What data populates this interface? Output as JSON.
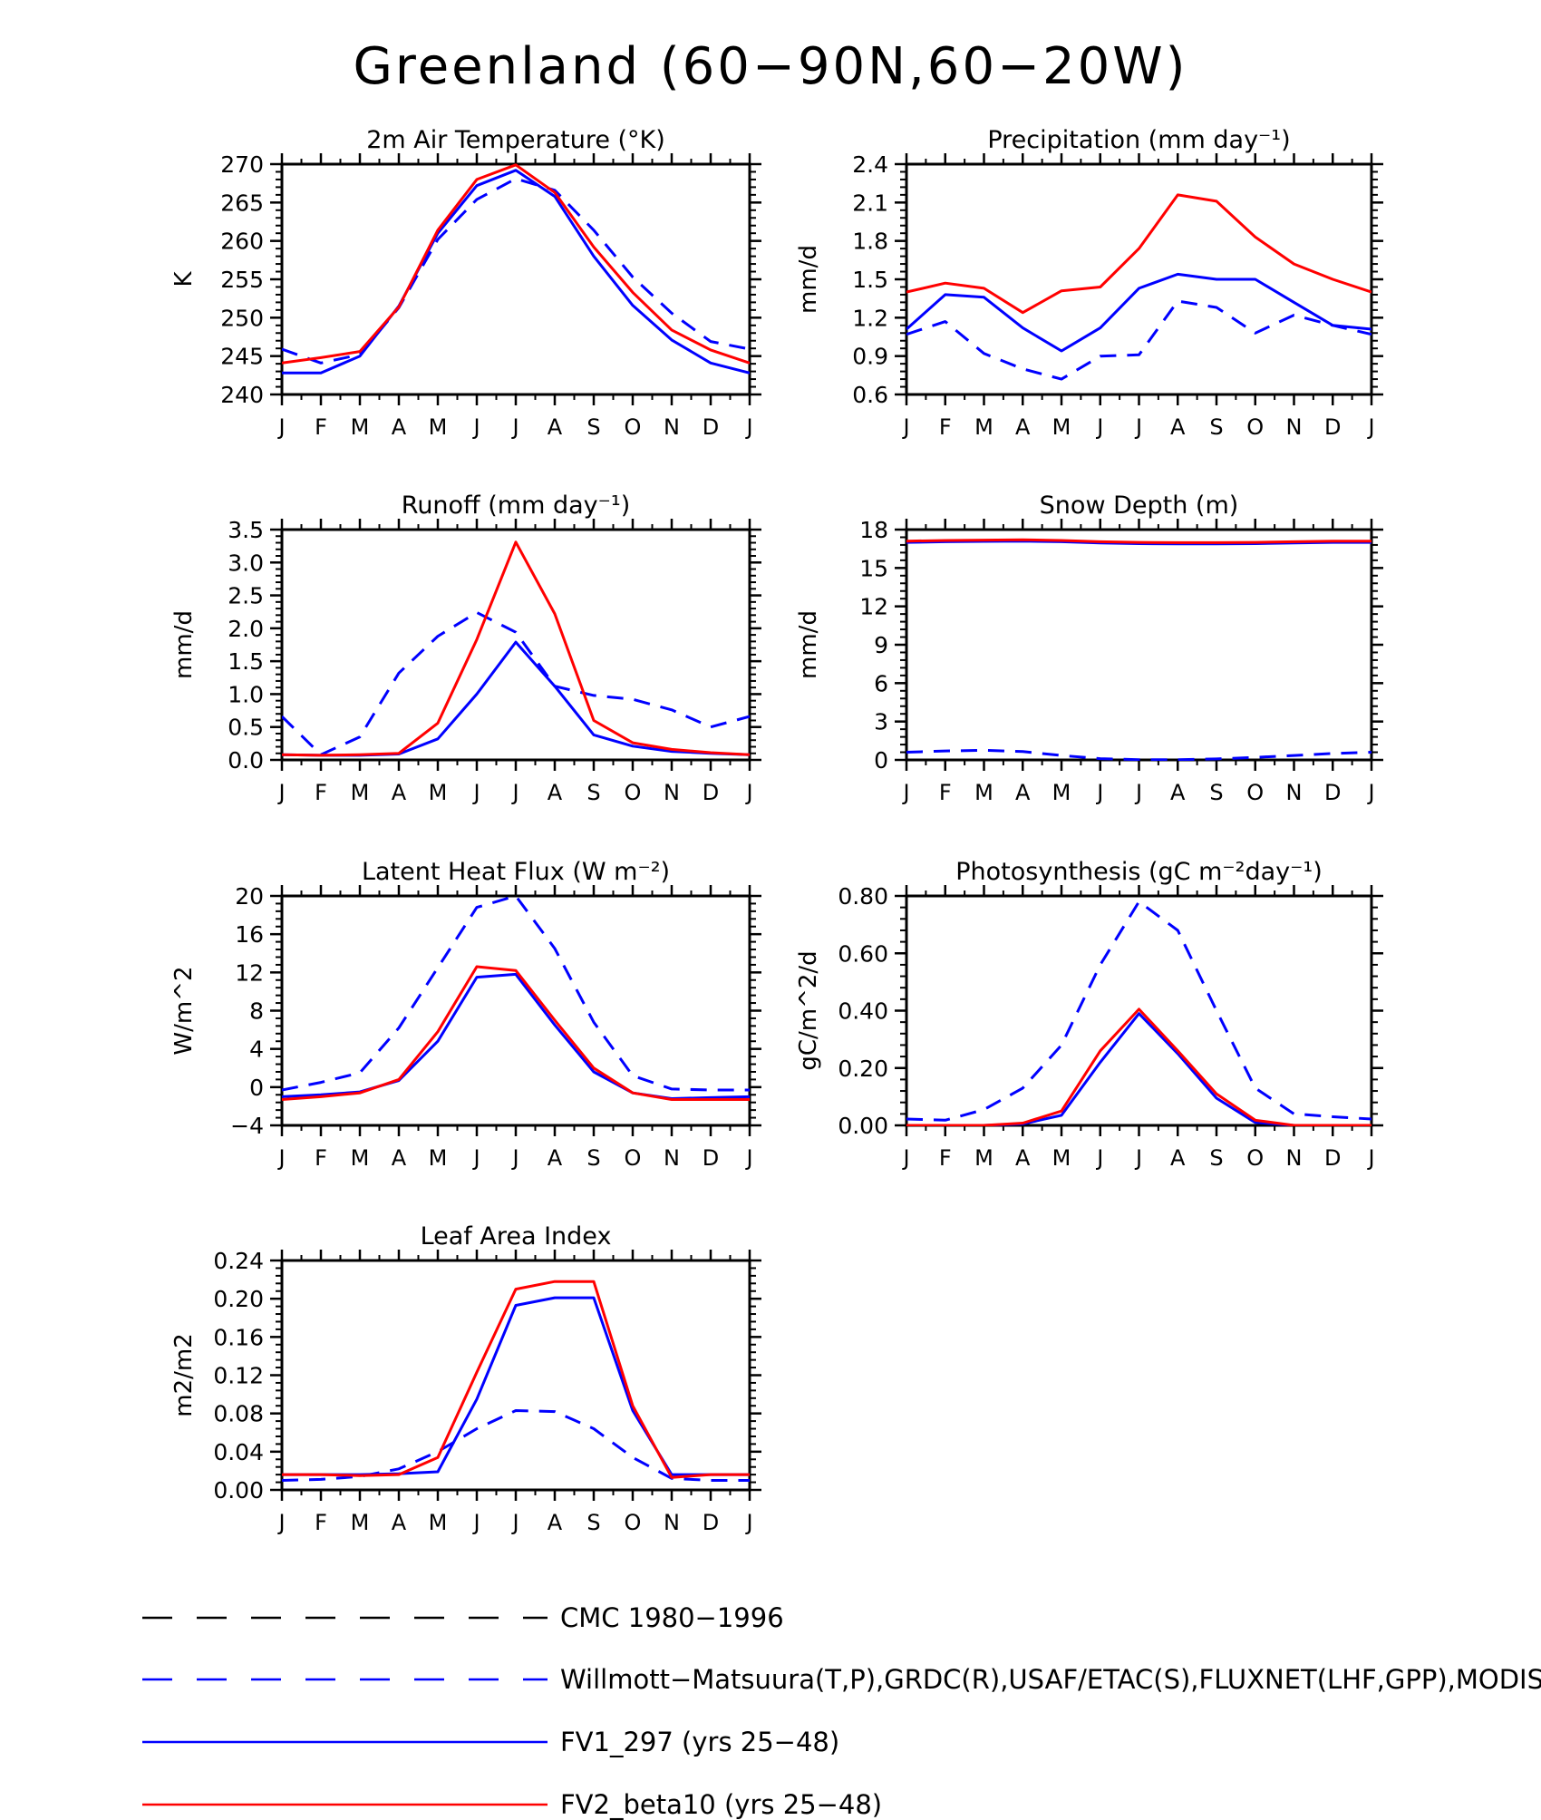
{
  "title": "Greenland (60−90N,60−20W)",
  "months": [
    "J",
    "F",
    "M",
    "A",
    "M",
    "J",
    "J",
    "A",
    "S",
    "O",
    "N",
    "D",
    "J"
  ],
  "colors": {
    "obs": "#0000ff",
    "fv1": "#0000ff",
    "fv2": "#ff0000",
    "cmc": "#000000"
  },
  "legend": [
    {
      "label": "CMC 1980−1996",
      "color": "#000000",
      "dash": "dashed"
    },
    {
      "label": "Willmott−Matsuura(T,P),GRDC(R),USAF/ETAC(S),FLUXNET(LHF,GPP),MODIS(L",
      "color": "#0000ff",
      "dash": "dashed"
    },
    {
      "label": "FV1_297 (yrs 25−48)",
      "color": "#0000ff",
      "dash": "solid"
    },
    {
      "label": "FV2_beta10 (yrs 25−48)",
      "color": "#ff0000",
      "dash": "solid"
    }
  ],
  "chart_data": [
    {
      "type": "line",
      "id": "temp",
      "title": "2m Air Temperature (°K)",
      "ylabel": "K",
      "ylim": [
        240,
        270
      ],
      "yticks": [
        240,
        245,
        250,
        255,
        260,
        265,
        270
      ],
      "ytick_labels": [
        "240",
        "245",
        "250",
        "255",
        "260",
        "265",
        "270"
      ],
      "series": [
        {
          "name": "Willmott-Matsuura (obs)",
          "style": "dashed",
          "color": "#0000ff",
          "values": [
            245.9,
            244.1,
            245.2,
            251.3,
            260.2,
            265.4,
            268.1,
            266.6,
            261.4,
            255.3,
            250.6,
            246.9,
            245.9
          ]
        },
        {
          "name": "FV1_297",
          "style": "solid",
          "color": "#0000ff",
          "values": [
            242.8,
            242.8,
            245.0,
            251.5,
            261.0,
            267.2,
            269.2,
            265.8,
            258.0,
            251.6,
            247.1,
            244.1,
            242.8
          ]
        },
        {
          "name": "FV2_beta10",
          "style": "solid",
          "color": "#ff0000",
          "values": [
            244.1,
            244.8,
            245.6,
            251.4,
            261.4,
            268.0,
            269.9,
            266.3,
            259.2,
            253.3,
            248.4,
            245.8,
            244.1
          ]
        }
      ]
    },
    {
      "type": "line",
      "id": "precip",
      "title": "Precipitation (mm day⁻¹)",
      "ylabel": "mm/d",
      "ylim": [
        0.6,
        2.4
      ],
      "yticks": [
        0.6,
        0.9,
        1.2,
        1.5,
        1.8,
        2.1,
        2.4
      ],
      "ytick_labels": [
        "0.6",
        "0.9",
        "1.2",
        "1.5",
        "1.8",
        "2.1",
        "2.4"
      ],
      "series": [
        {
          "name": "Willmott-Matsuura (obs)",
          "style": "dashed",
          "color": "#0000ff",
          "values": [
            1.07,
            1.17,
            0.92,
            0.8,
            0.72,
            0.9,
            0.91,
            1.33,
            1.28,
            1.08,
            1.22,
            1.14,
            1.07
          ]
        },
        {
          "name": "FV1_297",
          "style": "solid",
          "color": "#0000ff",
          "values": [
            1.11,
            1.38,
            1.36,
            1.12,
            0.94,
            1.12,
            1.43,
            1.54,
            1.5,
            1.5,
            1.32,
            1.14,
            1.11
          ]
        },
        {
          "name": "FV2_beta10",
          "style": "solid",
          "color": "#ff0000",
          "values": [
            1.4,
            1.47,
            1.43,
            1.24,
            1.41,
            1.44,
            1.74,
            2.16,
            2.11,
            1.83,
            1.62,
            1.5,
            1.4
          ]
        }
      ]
    },
    {
      "type": "line",
      "id": "runoff",
      "title": "Runoff (mm day⁻¹)",
      "ylabel": "mm/d",
      "ylim": [
        0,
        3.5
      ],
      "yticks": [
        0,
        0.5,
        1.0,
        1.5,
        2.0,
        2.5,
        3.0,
        3.5
      ],
      "ytick_labels": [
        "0.0",
        "0.5",
        "1.0",
        "1.5",
        "2.0",
        "2.5",
        "3.0",
        "3.5"
      ],
      "series": [
        {
          "name": "GRDC (obs)",
          "style": "dashed",
          "color": "#0000ff",
          "values": [
            0.66,
            0.08,
            0.35,
            1.32,
            1.88,
            2.24,
            1.94,
            1.12,
            0.98,
            0.92,
            0.76,
            0.5,
            0.66
          ]
        },
        {
          "name": "FV1_297",
          "style": "solid",
          "color": "#0000ff",
          "values": [
            0.08,
            0.07,
            0.07,
            0.09,
            0.32,
            1.0,
            1.79,
            1.12,
            0.38,
            0.21,
            0.13,
            0.1,
            0.08
          ]
        },
        {
          "name": "FV2_beta10",
          "style": "solid",
          "color": "#ff0000",
          "values": [
            0.08,
            0.07,
            0.08,
            0.1,
            0.56,
            1.83,
            3.31,
            2.22,
            0.6,
            0.26,
            0.16,
            0.11,
            0.08
          ]
        }
      ]
    },
    {
      "type": "line",
      "id": "snow",
      "title": "Snow Depth (m)",
      "ylabel": "mm/d",
      "ylim": [
        0,
        18
      ],
      "yticks": [
        0,
        3,
        6,
        9,
        12,
        15,
        18
      ],
      "ytick_labels": [
        "0",
        "3",
        "6",
        "9",
        "12",
        "15",
        "18"
      ],
      "series": [
        {
          "name": "USAF/ETAC (obs)",
          "style": "dashed",
          "color": "#0000ff",
          "values": [
            0.6,
            0.7,
            0.75,
            0.65,
            0.35,
            0.1,
            0.02,
            0.02,
            0.08,
            0.2,
            0.35,
            0.5,
            0.6
          ]
        },
        {
          "name": "FV1_297",
          "style": "solid",
          "color": "#0000ff",
          "values": [
            17.0,
            17.05,
            17.08,
            17.1,
            17.05,
            16.95,
            16.9,
            16.88,
            16.88,
            16.9,
            16.95,
            17.0,
            17.0
          ]
        },
        {
          "name": "FV2_beta10",
          "style": "solid",
          "color": "#ff0000",
          "values": [
            17.1,
            17.15,
            17.18,
            17.2,
            17.15,
            17.05,
            17.0,
            16.98,
            16.98,
            17.0,
            17.05,
            17.1,
            17.1
          ]
        }
      ]
    },
    {
      "type": "line",
      "id": "lhf",
      "title": "Latent Heat Flux (W m⁻²)",
      "ylabel": "W/m^2",
      "ylim": [
        -4,
        20
      ],
      "yticks": [
        -4,
        0,
        4,
        8,
        12,
        16,
        20
      ],
      "ytick_labels": [
        "−4",
        "0",
        "4",
        "8",
        "12",
        "16",
        "20"
      ],
      "series": [
        {
          "name": "FLUXNET (obs)",
          "style": "dashed",
          "color": "#0000ff",
          "values": [
            -0.3,
            0.5,
            1.5,
            6.2,
            12.5,
            18.8,
            20.0,
            14.5,
            6.8,
            1.2,
            -0.2,
            -0.3,
            -0.3
          ]
        },
        {
          "name": "FV1_297",
          "style": "solid",
          "color": "#0000ff",
          "values": [
            -1.0,
            -0.8,
            -0.5,
            0.7,
            4.8,
            11.5,
            11.8,
            6.5,
            1.6,
            -0.6,
            -1.2,
            -1.1,
            -1.0
          ]
        },
        {
          "name": "FV2_beta10",
          "style": "solid",
          "color": "#ff0000",
          "values": [
            -1.3,
            -1.0,
            -0.6,
            0.8,
            5.8,
            12.6,
            12.2,
            7.0,
            2.0,
            -0.6,
            -1.3,
            -1.3,
            -1.3
          ]
        }
      ]
    },
    {
      "type": "line",
      "id": "gpp",
      "title": "Photosynthesis (gC m⁻²day⁻¹)",
      "ylabel": "gC/m^2/d",
      "ylim": [
        0,
        0.8
      ],
      "yticks": [
        0,
        0.2,
        0.4,
        0.6,
        0.8
      ],
      "ytick_labels": [
        "0.00",
        "0.20",
        "0.40",
        "0.60",
        "0.80"
      ],
      "series": [
        {
          "name": "FLUXNET (obs)",
          "style": "dashed",
          "color": "#0000ff",
          "values": [
            0.022,
            0.018,
            0.055,
            0.13,
            0.28,
            0.56,
            0.78,
            0.68,
            0.4,
            0.13,
            0.04,
            0.03,
            0.022
          ]
        },
        {
          "name": "FV1_297",
          "style": "solid",
          "color": "#0000ff",
          "values": [
            0.0,
            0.0,
            0.0,
            0.005,
            0.035,
            0.22,
            0.39,
            0.25,
            0.095,
            0.01,
            0.0,
            0.0,
            0.0
          ]
        },
        {
          "name": "FV2_beta10",
          "style": "solid",
          "color": "#ff0000",
          "values": [
            0.0,
            0.0,
            0.0,
            0.008,
            0.05,
            0.26,
            0.405,
            0.26,
            0.11,
            0.018,
            0.0,
            0.0,
            0.0
          ]
        }
      ]
    },
    {
      "type": "line",
      "id": "lai",
      "title": "Leaf Area Index",
      "ylabel": "m2/m2",
      "ylim": [
        0,
        0.24
      ],
      "yticks": [
        0,
        0.04,
        0.08,
        0.12,
        0.16,
        0.2,
        0.24
      ],
      "ytick_labels": [
        "0.00",
        "0.04",
        "0.08",
        "0.12",
        "0.16",
        "0.20",
        "0.24"
      ],
      "series": [
        {
          "name": "MODIS (obs)",
          "style": "dashed",
          "color": "#0000ff",
          "values": [
            0.01,
            0.011,
            0.014,
            0.022,
            0.04,
            0.064,
            0.083,
            0.082,
            0.064,
            0.034,
            0.012,
            0.01,
            0.01
          ]
        },
        {
          "name": "FV1_297",
          "style": "solid",
          "color": "#0000ff",
          "values": [
            0.016,
            0.016,
            0.016,
            0.017,
            0.019,
            0.095,
            0.193,
            0.201,
            0.201,
            0.083,
            0.016,
            0.016,
            0.016
          ]
        },
        {
          "name": "FV2_beta10",
          "style": "solid",
          "color": "#ff0000",
          "values": [
            0.016,
            0.016,
            0.015,
            0.016,
            0.034,
            0.123,
            0.21,
            0.218,
            0.218,
            0.088,
            0.013,
            0.016,
            0.016
          ]
        }
      ]
    }
  ]
}
